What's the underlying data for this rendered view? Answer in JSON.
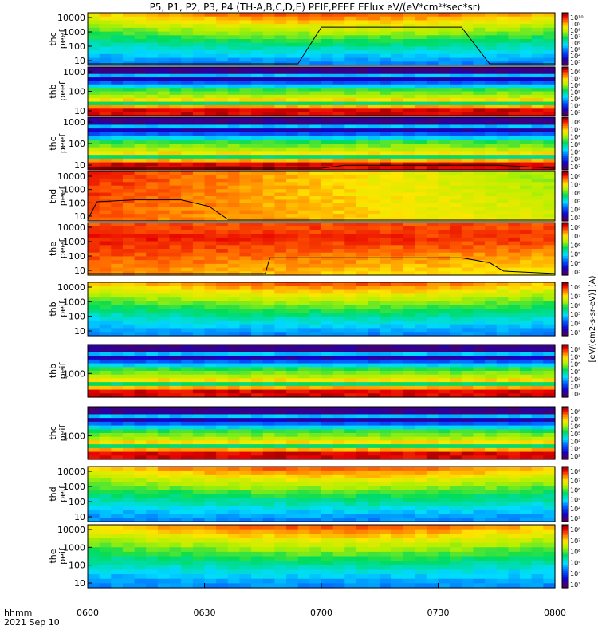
{
  "chart_data": {
    "type": "heatmap",
    "title": "P5, P1, P2, P3, P4 (TH-A,B,C,D,E) PEIF,PEEF EFlux eV/(eV*cm²*sec*sr)",
    "colorbar_unit": "[eV/(cm2-s-sr-eV)] (A)",
    "x_axis": {
      "ticks": [
        "0600",
        "0630",
        "0700",
        "0730",
        "0800"
      ],
      "corner_label": "hhmm",
      "date": "2021 Sep 10"
    },
    "colormap": "rainbow (purple-blue-cyan-green-yellow-red-darkred)",
    "panels": [
      {
        "name": "thc peef",
        "y_label": [
          "thc",
          "peef"
        ],
        "y_ticks": [
          "10",
          "100",
          "1000",
          "10000"
        ],
        "y_scale": "log",
        "colorbar_ticks": [
          "10¹⁰",
          "10⁹",
          "10⁸",
          "10⁷",
          "10⁶",
          "10⁵",
          "10⁴",
          "10³"
        ],
        "pattern": "broad",
        "palette": "cool-yellow",
        "overlay": [
          [
            0,
            0
          ],
          [
            0.45,
            0
          ],
          [
            0.5,
            0.74
          ],
          [
            0.8,
            0.74
          ],
          [
            0.86,
            0
          ],
          [
            1,
            0
          ]
        ]
      },
      {
        "name": "thb peef",
        "y_label": [
          "thb",
          "peef"
        ],
        "y_ticks": [
          "10",
          "100",
          "1000"
        ],
        "y_scale": "log",
        "colorbar_ticks": [
          "10⁸",
          "10⁷",
          "10⁶",
          "10⁵",
          "10⁴",
          "10³",
          "10²"
        ],
        "pattern": "band",
        "palette": "full"
      },
      {
        "name": "thc peef",
        "y_label": [
          "thc",
          "peef"
        ],
        "y_ticks": [
          "10",
          "100",
          "1000"
        ],
        "y_scale": "log",
        "colorbar_ticks": [
          "10⁸",
          "10⁷",
          "10⁶",
          "10⁵",
          "10⁴",
          "10³",
          "10²"
        ],
        "pattern": "band",
        "palette": "full",
        "overlay": [
          [
            0,
            0
          ],
          [
            0.5,
            0
          ],
          [
            0.55,
            0.06
          ],
          [
            0.88,
            0.06
          ],
          [
            1,
            0
          ]
        ]
      },
      {
        "name": "thd peef",
        "y_label": [
          "thd",
          "peef"
        ],
        "y_ticks": [
          "10",
          "100",
          "1000",
          "10000"
        ],
        "y_scale": "log",
        "colorbar_ticks": [
          "10⁸",
          "10⁷",
          "10⁶",
          "10⁵",
          "10⁴",
          "10³"
        ],
        "pattern": "hot-fade",
        "palette": "hot",
        "overlay": [
          [
            0,
            0
          ],
          [
            0.02,
            0.38
          ],
          [
            0.1,
            0.42
          ],
          [
            0.2,
            0.42
          ],
          [
            0.26,
            0.28
          ],
          [
            0.3,
            0
          ],
          [
            1,
            0
          ]
        ]
      },
      {
        "name": "the peef",
        "y_label": [
          "the",
          "peef"
        ],
        "y_ticks": [
          "10",
          "100",
          "1000",
          "10000"
        ],
        "y_scale": "log",
        "colorbar_ticks": [
          "10⁸",
          "10⁷",
          "10⁶",
          "10⁵",
          "10⁴",
          "10³"
        ],
        "pattern": "hot",
        "palette": "hot",
        "overlay": [
          [
            0,
            0
          ],
          [
            0.38,
            0
          ],
          [
            0.39,
            0.32
          ],
          [
            0.8,
            0.32
          ],
          [
            0.86,
            0.22
          ],
          [
            0.89,
            0.05
          ],
          [
            1,
            0
          ]
        ]
      },
      {
        "name": "thb peif",
        "y_label": [
          "thb",
          "peif"
        ],
        "y_ticks": [
          "10",
          "100",
          "1000",
          "10000"
        ],
        "y_scale": "log",
        "colorbar_ticks": [
          "10⁸",
          "10⁷",
          "10⁶",
          "10⁵",
          "10⁴",
          "10³"
        ],
        "pattern": "broad",
        "palette": "cool"
      },
      {
        "name": "thb peif",
        "y_label": [
          "thb",
          "peif"
        ],
        "y_ticks": [
          "1000"
        ],
        "y_scale": "log",
        "colorbar_ticks": [
          "10⁸",
          "10⁷",
          "10⁶",
          "10⁵",
          "10⁴",
          "10³",
          "10²"
        ],
        "pattern": "band",
        "palette": "full"
      },
      {
        "name": "thc peif",
        "y_label": [
          "thc",
          "peif"
        ],
        "y_ticks": [
          "1000"
        ],
        "y_scale": "log",
        "colorbar_ticks": [
          "10⁸",
          "10⁷",
          "10⁶",
          "10⁵",
          "10⁴",
          "10³",
          "10²"
        ],
        "pattern": "band",
        "palette": "full"
      },
      {
        "name": "thd peif",
        "y_label": [
          "thd",
          "peif"
        ],
        "y_ticks": [
          "10",
          "100",
          "1000",
          "10000"
        ],
        "y_scale": "log",
        "colorbar_ticks": [
          "10⁸",
          "10⁷",
          "10⁶",
          "10⁵",
          "10⁴",
          "10³"
        ],
        "pattern": "broad",
        "palette": "cool-yellow"
      },
      {
        "name": "the peif",
        "y_label": [
          "the",
          "peif"
        ],
        "y_ticks": [
          "10",
          "100",
          "1000",
          "10000"
        ],
        "y_scale": "log",
        "colorbar_ticks": [
          "10⁸",
          "10⁷",
          "10⁶",
          "10⁵",
          "10⁴",
          "10³"
        ],
        "pattern": "broad",
        "palette": "cool"
      }
    ]
  }
}
